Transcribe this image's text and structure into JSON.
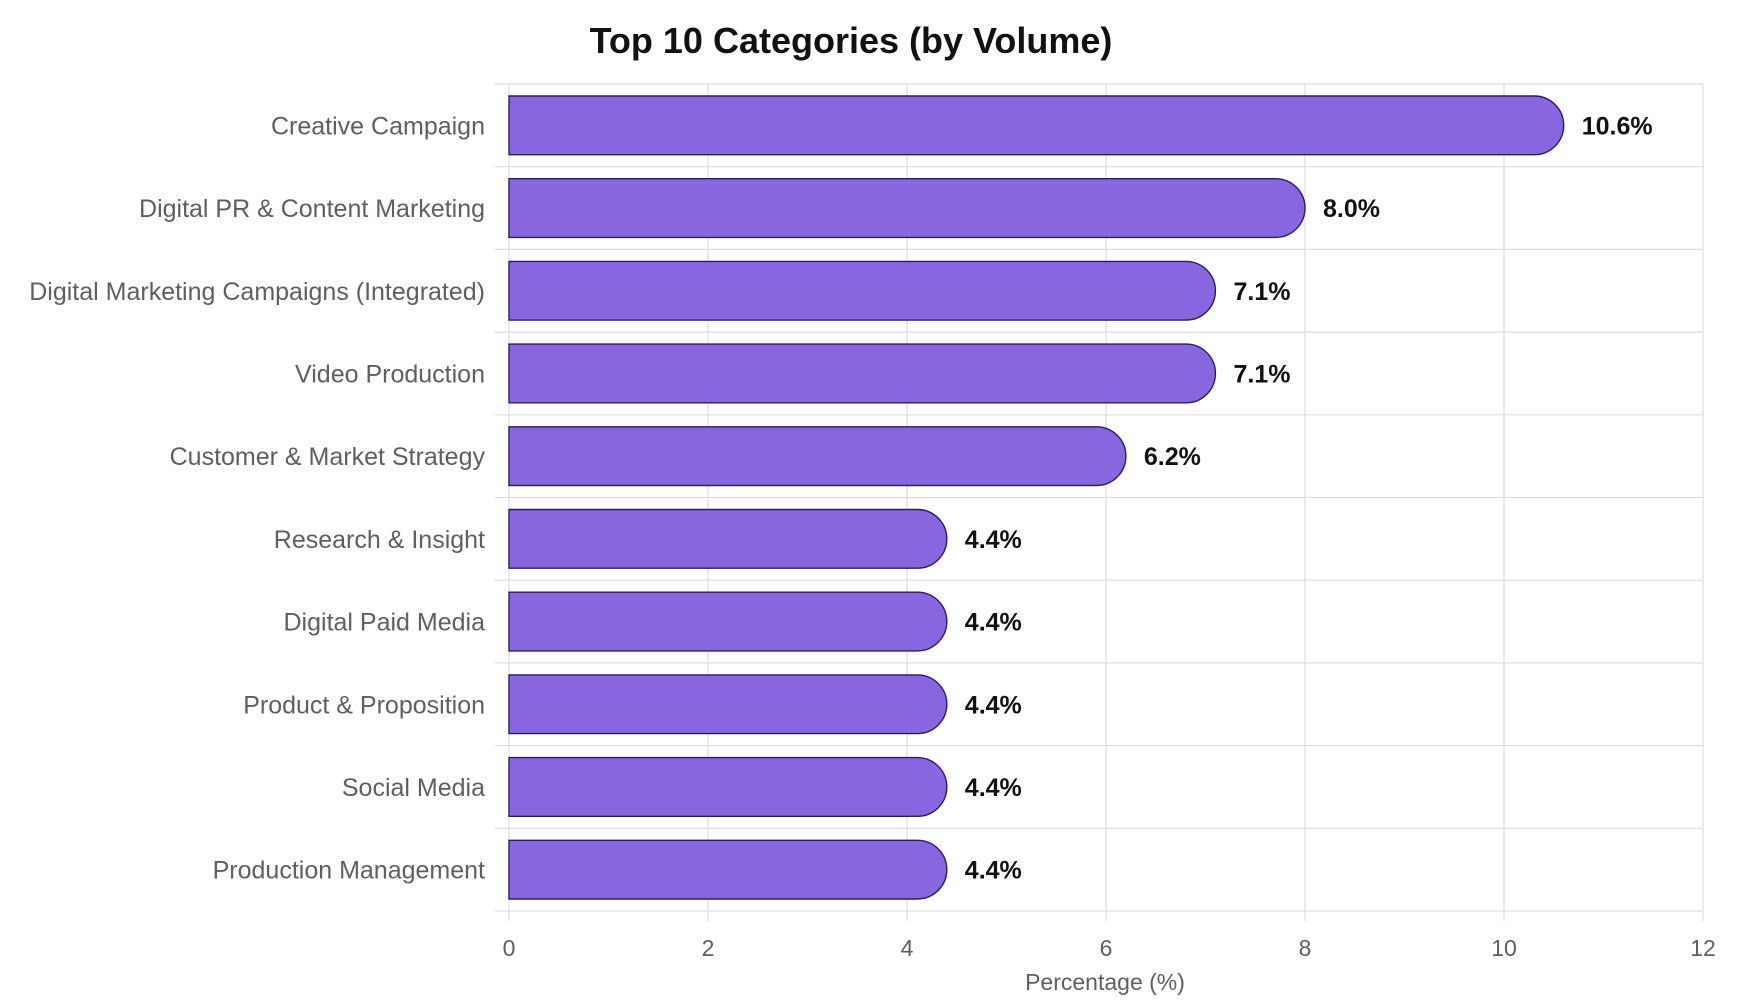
{
  "chart_data": {
    "type": "bar",
    "orientation": "horizontal",
    "title": "Top 10 Categories (by Volume)",
    "xlabel": "Percentage (%)",
    "ylabel": "",
    "xlim": [
      0,
      12
    ],
    "xticks": [
      0,
      2,
      4,
      6,
      8,
      10,
      12
    ],
    "grid": true,
    "bar_color": "#8866e0",
    "bar_edge_color": "#2a1f5c",
    "categories": [
      "Creative Campaign",
      "Digital PR & Content Marketing",
      "Digital Marketing Campaigns (Integrated)",
      "Video Production",
      "Customer & Market Strategy",
      "Research & Insight",
      "Digital Paid Media",
      "Product & Proposition",
      "Social Media",
      "Production Management"
    ],
    "values": [
      10.6,
      8.0,
      7.1,
      7.1,
      6.2,
      4.4,
      4.4,
      4.4,
      4.4,
      4.4
    ],
    "value_labels": [
      "10.6%",
      "8.0%",
      "7.1%",
      "7.1%",
      "6.2%",
      "4.4%",
      "4.4%",
      "4.4%",
      "4.4%",
      "4.4%"
    ]
  }
}
